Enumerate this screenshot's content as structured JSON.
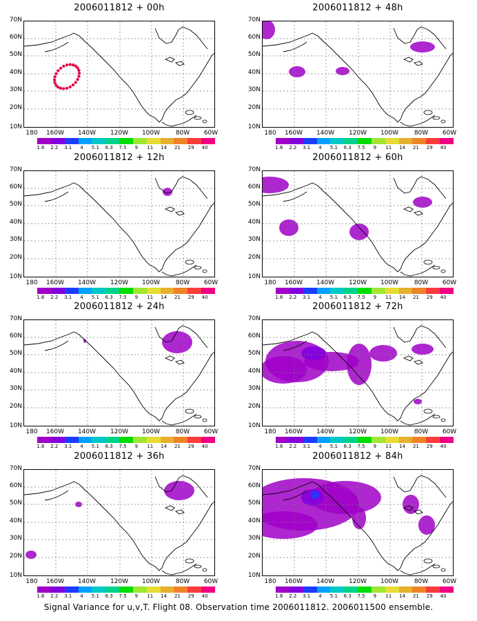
{
  "caption": "Signal Variance for u,v,T. Flight 08. Observation time 2006011812. 2006011500 ensemble.",
  "lat_labels": [
    "70N",
    "60N",
    "50N",
    "40N",
    "30N",
    "20N",
    "10N"
  ],
  "lon_labels": [
    "180",
    "160W",
    "140W",
    "120W",
    "100W",
    "80W",
    "60W"
  ],
  "colorbar": {
    "labels": [
      "1.6",
      "2.2",
      "3.1",
      "4",
      "5.1",
      "6.3",
      "7.5",
      "9",
      "11",
      "14",
      "21",
      "29",
      "40"
    ],
    "colors": [
      "#a000c8",
      "#8200dc",
      "#1e3cff",
      "#00a0ff",
      "#00c8c8",
      "#00d28c",
      "#00dc00",
      "#a0e632",
      "#e6dc32",
      "#e6af2d",
      "#f08228",
      "#fa3c3c",
      "#f00082"
    ]
  },
  "panels": [
    {
      "title": "2006011812 + 00h",
      "forecast_hour": 0
    },
    {
      "title": "2006011812 + 48h",
      "forecast_hour": 48
    },
    {
      "title": "2006011812 + 12h",
      "forecast_hour": 12
    },
    {
      "title": "2006011812 + 60h",
      "forecast_hour": 60
    },
    {
      "title": "2006011812 + 24h",
      "forecast_hour": 24
    },
    {
      "title": "2006011812 + 72h",
      "forecast_hour": 72
    },
    {
      "title": "2006011812 + 36h",
      "forecast_hour": 36
    },
    {
      "title": "2006011812 + 84h",
      "forecast_hour": 84
    }
  ]
}
